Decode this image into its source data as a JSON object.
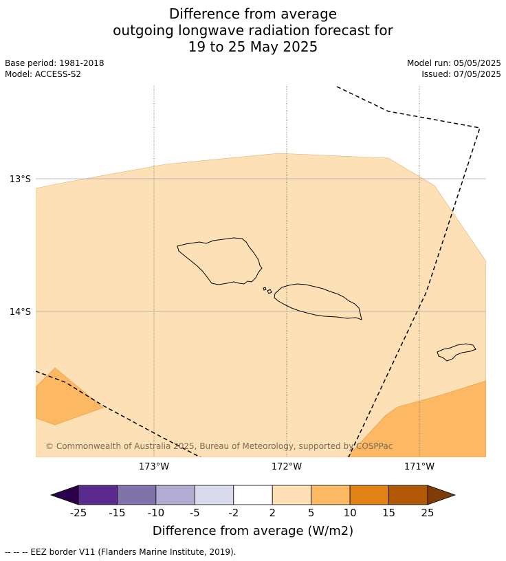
{
  "title": {
    "line1": "Difference from average",
    "line2": "outgoing longwave radiation forecast for",
    "line3": "19 to 25 May 2025"
  },
  "meta": {
    "base_period": "Base period: 1981-2018",
    "model": "Model: ACCESS-S2",
    "model_run": "Model run: 05/05/2025",
    "issued": "Issued: 07/05/2025"
  },
  "map": {
    "lat_labels": [
      "13°S",
      "14°S"
    ],
    "lon_labels": [
      "173°W",
      "172°W",
      "171°W"
    ],
    "copyright": "© Commonwealth of Australia 2025, Bureau of Meteorology, supported by COSPPac"
  },
  "colorbar": {
    "tick_labels": [
      "-25",
      "-15",
      "-10",
      "-5",
      "-2",
      "2",
      "5",
      "10",
      "15",
      "25"
    ],
    "colors": [
      "#2d004b",
      "#5a2a8e",
      "#8073ac",
      "#b2abd2",
      "#d8daeb",
      "#ffffff",
      "#fde0b6",
      "#fdb863",
      "#e08214",
      "#b35806",
      "#7f3b08"
    ],
    "label": "Difference from average (W/m2)"
  },
  "footnote": "--  --  -- EEZ border V11 (Flanders Marine Institute, 2019)."
}
